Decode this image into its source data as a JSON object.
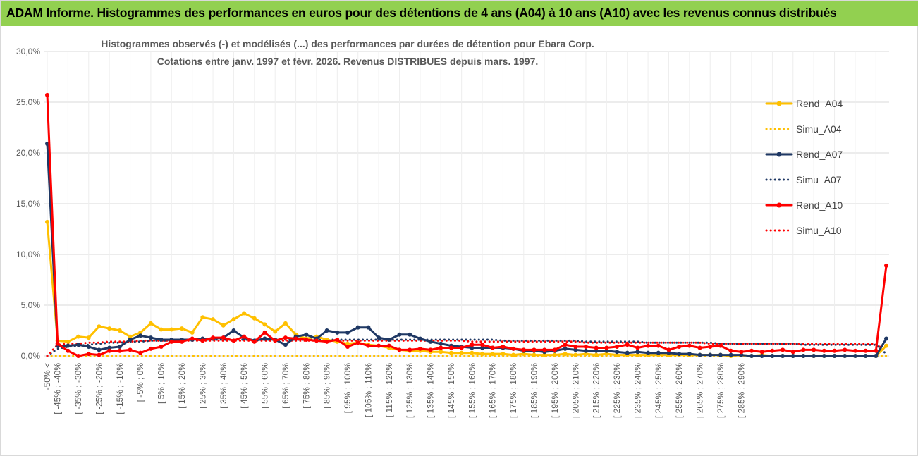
{
  "banner": {
    "title": "ADAM Informe. Histogrammes des performances en euros pour des détentions de 4 ans (A04) à 10 ans (A10) avec les revenus connus distribués"
  },
  "colors": {
    "banner_bg": "#92d050",
    "A04": "#ffc000",
    "A07": "#1f3864",
    "A10": "#ff0000",
    "grid": "#d9d9d9"
  },
  "chart_data": {
    "type": "line",
    "title": "Histogrammes observés (-) et modélisés (...) des performances par durées de détention pour Ebara Corp.",
    "subtitle": "Cotations entre janv. 1997 et févr. 2026. Revenus DISTRIBUES depuis mars. 1997.",
    "ylim": [
      0,
      30
    ],
    "y_ticks": [
      "0,0%",
      "5,0%",
      "10,0%",
      "15,0%",
      "20,0%",
      "25,0%",
      "30,0%"
    ],
    "grid": "horizontal",
    "legend_position": "right",
    "x_labels": [
      "-50% <",
      "[ -45% ; -40%",
      "[ -35% ; -30%",
      "[ -25% ; -20%",
      "[ -15% ; -10%",
      "[ -5% ; 0%",
      "[ 5% ; 10%",
      "[ 15% ; 20%",
      "[ 25% ; 30%",
      "[ 35% ; 40%",
      "[ 45% ; 50%",
      "[ 55% ; 60%",
      "[ 65% ; 70%",
      "[ 75% ; 80%",
      "[ 85% ; 90%",
      "[ 95% ; 100%",
      "[ 105% ; 110%",
      "[ 115% ; 120%",
      "[ 125% ; 130%",
      "[ 135% ; 140%",
      "[ 145% ; 150%",
      "[ 155% ; 160%",
      "[ 165% ; 170%",
      "[ 175% ; 180%",
      "[ 185% ; 190%",
      "[ 195% ; 200%",
      "[ 205% ; 210%",
      "[ 215% ; 220%",
      "[ 225% ; 230%",
      "[ 235% ; 240%",
      "[ 245% ; 250%",
      "[ 255% ; 260%",
      "[ 265% ; 270%",
      "[ 275% ; 280%",
      "[ 285% ; 290%"
    ],
    "series": [
      {
        "name": "Rend_A04",
        "style": "solid",
        "color": "#ffc000",
        "values": [
          13.2,
          1.5,
          1.4,
          1.9,
          1.8,
          2.9,
          2.7,
          2.5,
          1.9,
          2.3,
          3.2,
          2.6,
          2.6,
          2.7,
          2.3,
          3.8,
          3.6,
          3.0,
          3.6,
          4.2,
          3.7,
          3.1,
          2.4,
          3.2,
          2.1,
          1.7,
          1.9,
          1.6,
          1.4,
          1.2,
          1.3,
          1.1,
          1.0,
          0.8,
          0.6,
          0.5,
          0.5,
          0.4,
          0.4,
          0.3,
          0.3,
          0.3,
          0.2,
          0.2,
          0.2,
          0.1,
          0.2,
          0.1,
          0.1,
          0.1,
          0.2,
          0.1,
          0.2,
          0.1,
          0.2,
          0.1,
          0.1,
          0.1,
          0.1,
          0.1,
          0.1,
          0.1,
          0.1,
          0.1,
          0.1,
          0.1,
          0.0,
          0.1,
          0.0,
          0.1,
          0.0,
          0.0,
          0.0,
          0.0,
          0.0,
          0.0,
          0.0,
          0.0,
          0.0,
          0.0,
          0.0,
          1.0
        ]
      },
      {
        "name": "Simu_A04",
        "style": "dotted",
        "color": "#ffc000",
        "values": [
          0.0,
          0.0,
          0.0,
          0.0,
          0.0,
          0.0,
          0.0,
          0.0,
          0.0,
          0.0,
          0.0,
          0.0,
          0.0,
          0.0,
          0.0,
          0.0,
          0.0,
          0.0,
          0.0,
          0.0,
          0.0,
          0.0,
          0.0,
          0.0,
          0.0,
          0.0,
          0.0,
          0.0,
          0.0,
          0.0,
          0.0,
          0.0,
          0.0,
          0.0,
          0.0,
          0.0,
          0.0,
          0.0,
          0.0,
          0.0,
          0.0,
          0.0,
          0.0,
          0.0,
          0.0,
          0.0,
          0.0,
          0.0,
          0.0,
          0.0,
          0.0,
          0.0,
          0.0,
          0.0,
          0.0,
          0.0,
          0.0,
          0.0,
          0.0,
          0.0,
          0.0,
          0.0,
          0.0,
          0.0,
          0.0,
          0.0,
          0.0,
          0.0,
          0.0,
          0.0,
          0.0,
          0.0,
          0.0,
          0.0,
          0.0,
          0.0,
          0.0,
          0.0,
          0.0,
          0.0,
          0.0,
          0.0
        ]
      },
      {
        "name": "Rend_A07",
        "style": "solid",
        "color": "#1f3864",
        "values": [
          20.9,
          1.0,
          1.0,
          1.1,
          0.9,
          0.6,
          0.8,
          0.9,
          1.6,
          2.0,
          1.8,
          1.6,
          1.6,
          1.6,
          1.6,
          1.7,
          1.7,
          1.8,
          2.5,
          1.8,
          1.5,
          1.7,
          1.6,
          1.1,
          1.9,
          2.1,
          1.7,
          2.5,
          2.3,
          2.3,
          2.8,
          2.8,
          1.8,
          1.6,
          2.1,
          2.1,
          1.7,
          1.4,
          1.2,
          1.0,
          0.9,
          0.8,
          0.8,
          0.8,
          0.8,
          0.7,
          0.5,
          0.5,
          0.4,
          0.5,
          0.7,
          0.6,
          0.5,
          0.5,
          0.5,
          0.4,
          0.3,
          0.4,
          0.3,
          0.3,
          0.3,
          0.2,
          0.2,
          0.1,
          0.1,
          0.1,
          0.1,
          0.1,
          0.0,
          0.0,
          0.0,
          0.0,
          0.0,
          0.0,
          0.0,
          0.0,
          0.0,
          0.0,
          0.0,
          0.0,
          0.0,
          1.7
        ]
      },
      {
        "name": "Simu_A07",
        "style": "dotted",
        "color": "#1f3864",
        "values": [
          0.0,
          0.7,
          0.9,
          1.0,
          1.1,
          1.2,
          1.3,
          1.3,
          1.4,
          1.4,
          1.5,
          1.5,
          1.5,
          1.6,
          1.6,
          1.6,
          1.6,
          1.6,
          1.6,
          1.6,
          1.6,
          1.6,
          1.6,
          1.6,
          1.6,
          1.6,
          1.6,
          1.6,
          1.6,
          1.6,
          1.6,
          1.6,
          1.6,
          1.6,
          1.6,
          1.6,
          1.6,
          1.6,
          1.6,
          1.6,
          1.6,
          1.6,
          1.6,
          1.6,
          1.5,
          1.5,
          1.5,
          1.5,
          1.5,
          1.5,
          1.5,
          1.5,
          1.4,
          1.4,
          1.4,
          1.4,
          1.4,
          1.4,
          1.3,
          1.3,
          1.3,
          1.3,
          1.3,
          1.3,
          1.3,
          1.2,
          1.2,
          1.2,
          1.2,
          1.2,
          1.2,
          1.2,
          1.2,
          1.1,
          1.1,
          1.1,
          1.1,
          1.1,
          1.1,
          1.1,
          1.1,
          0.2
        ]
      },
      {
        "name": "Rend_A10",
        "style": "solid",
        "color": "#ff0000",
        "values": [
          25.7,
          1.2,
          0.5,
          0.0,
          0.2,
          0.1,
          0.5,
          0.5,
          0.6,
          0.3,
          0.7,
          0.9,
          1.4,
          1.4,
          1.7,
          1.5,
          1.8,
          1.8,
          1.5,
          1.9,
          1.4,
          2.3,
          1.5,
          1.8,
          1.7,
          1.6,
          1.5,
          1.4,
          1.6,
          0.9,
          1.3,
          1.0,
          1.0,
          1.0,
          0.6,
          0.6,
          0.7,
          0.6,
          0.8,
          0.8,
          0.8,
          1.1,
          1.1,
          0.8,
          0.9,
          0.7,
          0.6,
          0.6,
          0.6,
          0.6,
          1.1,
          0.9,
          0.9,
          0.8,
          0.8,
          0.9,
          1.1,
          0.8,
          1.0,
          1.0,
          0.6,
          0.9,
          1.0,
          0.8,
          0.9,
          1.0,
          0.5,
          0.4,
          0.5,
          0.4,
          0.5,
          0.6,
          0.4,
          0.6,
          0.6,
          0.5,
          0.5,
          0.6,
          0.5,
          0.5,
          0.5,
          8.9
        ]
      },
      {
        "name": "Simu_A10",
        "style": "dotted",
        "color": "#ff0000",
        "values": [
          0.0,
          1.1,
          1.2,
          1.2,
          1.3,
          1.3,
          1.4,
          1.4,
          1.4,
          1.5,
          1.5,
          1.5,
          1.5,
          1.5,
          1.5,
          1.5,
          1.5,
          1.5,
          1.5,
          1.5,
          1.5,
          1.5,
          1.5,
          1.5,
          1.5,
          1.5,
          1.5,
          1.5,
          1.5,
          1.5,
          1.5,
          1.5,
          1.5,
          1.5,
          1.5,
          1.5,
          1.5,
          1.5,
          1.5,
          1.5,
          1.5,
          1.4,
          1.4,
          1.4,
          1.4,
          1.4,
          1.4,
          1.4,
          1.4,
          1.4,
          1.4,
          1.4,
          1.3,
          1.3,
          1.3,
          1.3,
          1.3,
          1.3,
          1.3,
          1.3,
          1.3,
          1.3,
          1.3,
          1.3,
          1.2,
          1.2,
          1.2,
          1.2,
          1.2,
          1.2,
          1.2,
          1.2,
          1.2,
          1.2,
          1.2,
          1.2,
          1.2,
          1.2,
          1.2,
          1.2,
          1.2,
          0.4
        ]
      }
    ]
  }
}
